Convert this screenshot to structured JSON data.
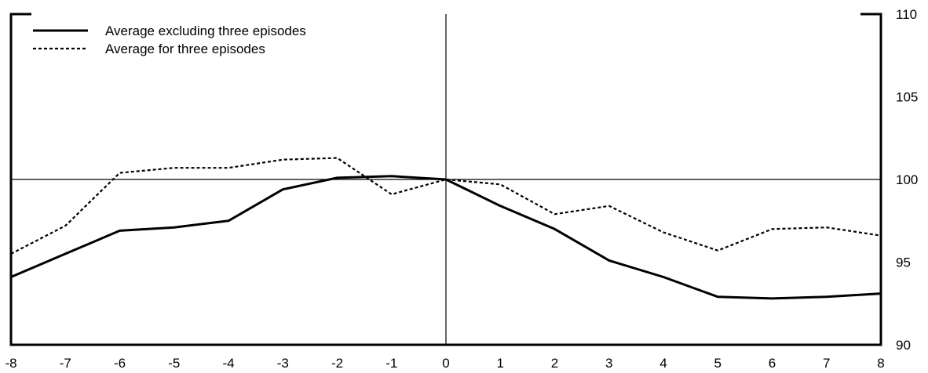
{
  "chart_data": {
    "type": "line",
    "x": [
      -8,
      -7,
      -6,
      -5,
      -4,
      -3,
      -2,
      -1,
      0,
      1,
      2,
      3,
      4,
      5,
      6,
      7,
      8
    ],
    "xlim": [
      -8,
      8
    ],
    "ylim": [
      90,
      110
    ],
    "x_tick_labels": [
      "-8",
      "-7",
      "-6",
      "-5",
      "-4",
      "-3",
      "-2",
      "-1",
      "0",
      "1",
      "2",
      "3",
      "4",
      "5",
      "6",
      "7",
      "8"
    ],
    "y_ticks": [
      90,
      95,
      100,
      105,
      110
    ],
    "y_tick_labels": [
      "90",
      "95",
      "100",
      "105",
      "110"
    ],
    "y_axis_side": "right",
    "reference_lines": {
      "horizontal_y": 100,
      "vertical_x": 0
    },
    "legend_position": "top-left",
    "grid": false,
    "series": [
      {
        "name": "Average excluding three episodes",
        "style": "solid",
        "color": "#000000",
        "values": [
          94.1,
          95.5,
          96.9,
          97.1,
          97.5,
          99.4,
          100.1,
          100.2,
          100.0,
          98.4,
          97.0,
          95.1,
          94.1,
          92.9,
          92.8,
          92.9,
          93.1
        ]
      },
      {
        "name": "Average for three episodes",
        "style": "dashed",
        "color": "#000000",
        "values": [
          95.5,
          97.2,
          100.4,
          100.7,
          100.7,
          101.2,
          101.3,
          99.1,
          100.0,
          99.7,
          97.9,
          98.4,
          96.8,
          95.7,
          97.0,
          97.1,
          96.6
        ]
      }
    ]
  }
}
